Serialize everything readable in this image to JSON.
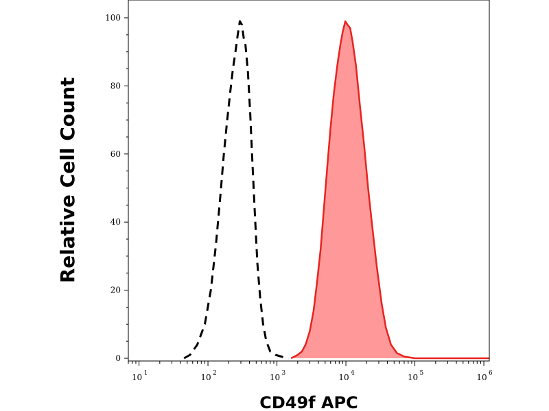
{
  "chart_data": {
    "type": "area",
    "title": "",
    "xlabel": "CD49f APC",
    "ylabel": "Relative Cell Count",
    "x_scale": "log",
    "xlim": [
      7,
      1200000
    ],
    "ylim": [
      0,
      103
    ],
    "x_ticks": [
      {
        "value": 10,
        "base": "10",
        "exp": "1"
      },
      {
        "value": 100,
        "base": "10",
        "exp": "2"
      },
      {
        "value": 1000,
        "base": "10",
        "exp": "3"
      },
      {
        "value": 10000,
        "base": "10",
        "exp": "4"
      },
      {
        "value": 100000,
        "base": "10",
        "exp": "5"
      },
      {
        "value": 1000000,
        "base": "10",
        "exp": "6"
      }
    ],
    "y_ticks": [
      {
        "value": 0,
        "label": "0"
      },
      {
        "value": 20,
        "label": "20"
      },
      {
        "value": 40,
        "label": "40"
      },
      {
        "value": 60,
        "label": "60"
      },
      {
        "value": 80,
        "label": "80"
      },
      {
        "value": 100,
        "label": "100"
      }
    ],
    "grid": false,
    "legend": "none",
    "series": [
      {
        "style": "dashed-outline",
        "color": "#000000",
        "x": [
          45,
          55,
          70,
          90,
          110,
          130,
          150,
          170,
          190,
          210,
          230,
          250,
          270,
          290,
          310,
          330,
          350,
          380,
          410,
          440,
          480,
          520,
          570,
          630,
          700,
          800,
          950,
          1150,
          1400
        ],
        "y": [
          0,
          1,
          4,
          10,
          20,
          33,
          47,
          60,
          70,
          78,
          85,
          90,
          95,
          99,
          98,
          94,
          92,
          84,
          72,
          58,
          42,
          28,
          18,
          10,
          5,
          2,
          1,
          0.5,
          0
        ]
      },
      {
        "style": "filled",
        "color": "#e8231f",
        "fill": "#ff9999",
        "x": [
          1600,
          1800,
          2000,
          2300,
          2600,
          3000,
          3400,
          3800,
          4300,
          4800,
          5400,
          6000,
          6700,
          7500,
          8300,
          9000,
          9800,
          10500,
          11500,
          12500,
          14000,
          16000,
          18500,
          21000,
          24000,
          28000,
          33000,
          38000,
          45000,
          55000,
          70000,
          100000,
          300000,
          1200000
        ],
        "y": [
          0,
          0.5,
          1,
          2,
          4,
          8,
          14,
          22,
          32,
          44,
          57,
          68,
          78,
          86,
          92,
          96,
          99,
          98,
          97,
          93,
          86,
          74,
          62,
          50,
          39,
          27,
          16,
          9,
          4,
          1.5,
          0.5,
          0,
          0,
          0
        ]
      }
    ]
  }
}
